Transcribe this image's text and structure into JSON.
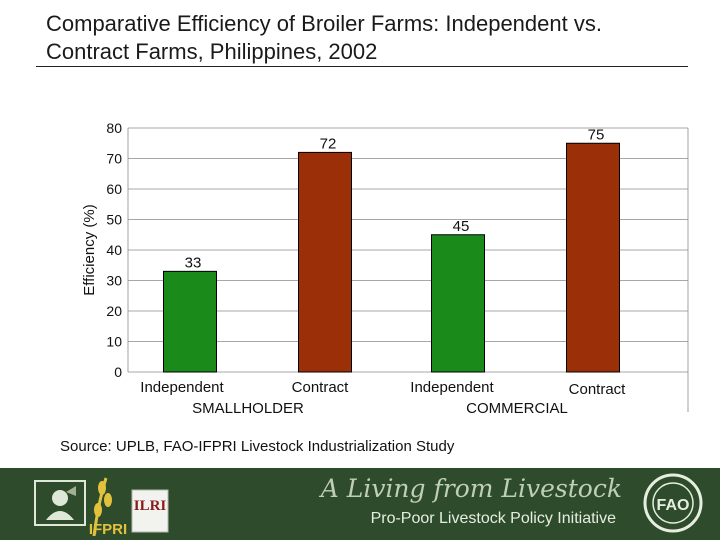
{
  "title": "Comparative Efficiency of Broiler Farms: Independent vs. Contract Farms, Philippines, 2002",
  "chart_data": {
    "type": "bar",
    "ylabel": "Efficiency (%)",
    "ylim": [
      0,
      80
    ],
    "yticks": [
      0,
      10,
      20,
      30,
      40,
      50,
      60,
      70,
      80
    ],
    "grid": true,
    "categories": [
      "Independent",
      "Contract",
      "Independent",
      "Contract"
    ],
    "groups": [
      "SMALLHOLDER",
      "COMMERCIAL"
    ],
    "values": [
      33,
      72,
      45,
      75
    ],
    "data_labels": [
      "33",
      "72",
      "45",
      "75"
    ],
    "colors": [
      "#1a8a1a",
      "#9b2f08",
      "#1a8a1a",
      "#9b2f08"
    ]
  },
  "source": "Source: UPLB, FAO-IFPRI Livestock Industrialization Study",
  "footer": {
    "tagline": "A Living from Livestock",
    "subline": "Pro-Poor Livestock Policy Initiative",
    "logos": {
      "ilri": "ILRI",
      "ifpri": "IFPRI",
      "fao": "FAO"
    }
  }
}
